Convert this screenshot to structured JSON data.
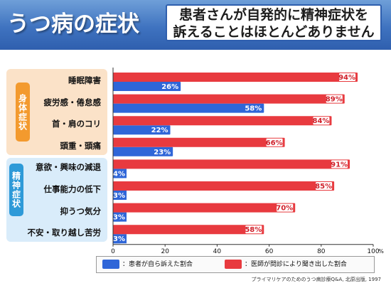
{
  "header": {
    "title": "うつ病の症状",
    "callout_line1": "患者さんが自発的に精神症状を",
    "callout_line2": "訴えることはほとんどありません"
  },
  "groups": {
    "body_label": "身体症状",
    "mind_label": "精神症状"
  },
  "colors": {
    "patient_series": "#2f66d8",
    "doctor_series": "#e83a3f",
    "title_bar": "#3f73c0"
  },
  "chart_data": {
    "type": "bar",
    "orientation": "horizontal",
    "categories": [
      "睡眠障害",
      "疲労感・倦怠感",
      "首・肩のコリ",
      "頭重・頭痛",
      "意欲・興味の減退",
      "仕事能力の低下",
      "抑うつ気分",
      "不安・取り越し苦労"
    ],
    "series": [
      {
        "name": "：患者が自ら訴えた割合",
        "values": [
          26,
          58,
          22,
          23,
          4,
          3,
          3,
          3
        ]
      },
      {
        "name": "：医師が問診により聞き出した割合",
        "values": [
          94,
          89,
          84,
          66,
          91,
          85,
          70,
          58
        ]
      }
    ],
    "xlim": [
      0,
      100
    ],
    "xticks": [
      "0",
      "20",
      "40",
      "60",
      "80",
      "100"
    ],
    "x_unit": "%",
    "grid": false,
    "legend_position": "bottom"
  },
  "source": "プライマリケアのためのうつ病診療Q&A, 北原出版, 1997"
}
